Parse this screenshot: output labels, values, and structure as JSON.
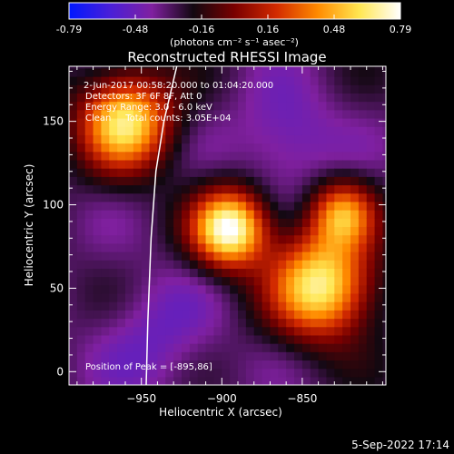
{
  "colorbar": {
    "ticks": [
      "-0.79",
      "-0.48",
      "-0.16",
      "0.16",
      "0.48",
      "0.79"
    ],
    "units_label": "(photons cm⁻² s⁻¹ asec⁻²)",
    "colors": [
      "#0018ff",
      "#4a1fd8",
      "#8020a0",
      "#120810",
      "#7a0000",
      "#d22a00",
      "#ff8a00",
      "#ffe650",
      "#ffffff"
    ]
  },
  "chart_data": {
    "type": "heatmap",
    "title": "Reconstructed RHESSI Image",
    "xlabel": "Heliocentric X (arcsec)",
    "ylabel": "Heliocentric Y (arcsec)",
    "xlim": [
      -995,
      -798
    ],
    "ylim": [
      -8,
      183
    ],
    "x_ticks": [
      -950,
      -900,
      -850
    ],
    "y_ticks": [
      0,
      50,
      100,
      150
    ],
    "color_range": [
      -0.79,
      0.79
    ],
    "sources": [
      {
        "x": -895,
        "y": 86,
        "peak": 0.79,
        "sigma": 16
      },
      {
        "x": -960,
        "y": 150,
        "peak": 0.62,
        "sigma": 20
      },
      {
        "x": -838,
        "y": 52,
        "peak": 0.66,
        "sigma": 22
      },
      {
        "x": -825,
        "y": 95,
        "peak": 0.35,
        "sigma": 14
      }
    ],
    "limb_curve": [
      [
        -947,
        -8
      ],
      [
        -946,
        30
      ],
      [
        -944,
        80
      ],
      [
        -941,
        120
      ],
      [
        -936,
        150
      ],
      [
        -928,
        183
      ]
    ],
    "annotations": [
      "2-Jun-2017 00:58:20.000 to 01:04:20.000",
      "Detectors: 3F 6F 8F, Att 0",
      "Energy Range: 3.0 - 6.0 keV",
      "Clean     Total counts: 3.05E+04",
      "Position of Peak = [-895,86]"
    ]
  },
  "footer": {
    "timestamp": "5-Sep-2022 17:14"
  }
}
